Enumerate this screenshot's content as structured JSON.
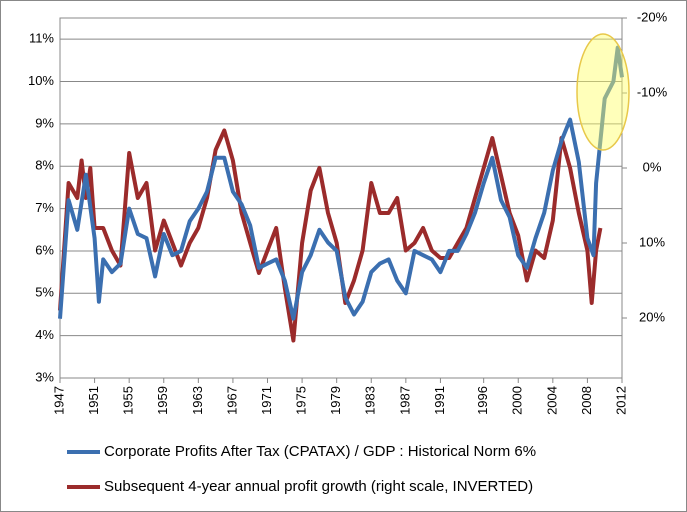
{
  "chart_data": {
    "type": "line",
    "xlim": [
      1947,
      2012
    ],
    "xticks": [
      1947,
      1951,
      1955,
      1959,
      1963,
      1967,
      1971,
      1975,
      1979,
      1983,
      1987,
      1991,
      1996,
      2000,
      2004,
      2008,
      2012
    ],
    "ylim": [
      3,
      11.5
    ],
    "yticks": [
      {
        "value": 3,
        "label": "3%"
      },
      {
        "value": 4,
        "label": "4%"
      },
      {
        "value": 5,
        "label": "5%"
      },
      {
        "value": 6,
        "label": "6%"
      },
      {
        "value": 7,
        "label": "7%"
      },
      {
        "value": 8,
        "label": "8%"
      },
      {
        "value": 9,
        "label": "9%"
      },
      {
        "value": 10,
        "label": "10%"
      },
      {
        "value": 11,
        "label": "11%"
      }
    ],
    "y2lim": [
      28,
      -20
    ],
    "y2ticks": [
      {
        "value": -20,
        "label": "-20%"
      },
      {
        "value": -10,
        "label": "-10%"
      },
      {
        "value": 0,
        "label": "0%"
      },
      {
        "value": 10,
        "label": "10%"
      },
      {
        "value": 20,
        "label": "20%"
      }
    ],
    "grid": true,
    "legend": "bottom",
    "series": [
      {
        "name": "Corporate Profits After Tax (CPATAX) / GDP : Historical Norm 6%",
        "color": "#3b6fb0",
        "x": [
          1947,
          1948,
          1949,
          1950,
          1951,
          1951.5,
          1952,
          1953,
          1954,
          1955,
          1956,
          1957,
          1958,
          1959,
          1960,
          1961,
          1962,
          1963,
          1964,
          1965,
          1966,
          1967,
          1968,
          1969,
          1970,
          1971,
          1972,
          1973,
          1974,
          1975,
          1976,
          1977,
          1978,
          1979,
          1980,
          1981,
          1982,
          1983,
          1984,
          1985,
          1986,
          1987,
          1988,
          1989,
          1990,
          1991,
          1992,
          1993,
          1994,
          1995,
          1996,
          1997,
          1998,
          1999,
          2000,
          2001,
          2002,
          2003,
          2004,
          2005,
          2006,
          2007,
          2008,
          2008.7,
          2009,
          2010,
          2011,
          2011.5,
          2012
        ],
        "values": [
          4.4,
          7.2,
          6.5,
          7.8,
          6.3,
          4.8,
          5.8,
          5.5,
          5.7,
          7.0,
          6.4,
          6.3,
          5.4,
          6.4,
          5.9,
          6.0,
          6.7,
          7.0,
          7.4,
          8.2,
          8.2,
          7.4,
          7.1,
          6.6,
          5.6,
          5.7,
          5.8,
          5.3,
          4.4,
          5.5,
          5.9,
          6.5,
          6.2,
          6.0,
          4.9,
          4.5,
          4.8,
          5.5,
          5.7,
          5.8,
          5.3,
          5.0,
          6.0,
          5.9,
          5.8,
          5.5,
          6.0,
          6.0,
          6.4,
          6.9,
          7.6,
          8.2,
          7.2,
          6.8,
          5.9,
          5.6,
          6.3,
          6.9,
          7.9,
          8.6,
          9.1,
          8.1,
          6.3,
          5.9,
          7.6,
          9.6,
          10.0,
          10.8,
          10.1
        ]
      },
      {
        "name": "Subsequent 4-year annual profit growth (right scale, INVERTED)",
        "color": "#9b2b2b",
        "axis": "y2",
        "x": [
          1947,
          1948,
          1949,
          1949.5,
          1950,
          1950.5,
          1951,
          1952,
          1953,
          1954,
          1955,
          1956,
          1957,
          1958,
          1959,
          1960,
          1961,
          1962,
          1963,
          1964,
          1965,
          1966,
          1967,
          1968,
          1969,
          1970,
          1971,
          1972,
          1973,
          1974,
          1975,
          1976,
          1977,
          1978,
          1979,
          1980,
          1981,
          1982,
          1983,
          1984,
          1985,
          1986,
          1987,
          1988,
          1989,
          1990,
          1991,
          1992,
          1993,
          1994,
          1995,
          1996,
          1997,
          1998,
          1999,
          2000,
          2001,
          2002,
          2003,
          2004,
          2005,
          2006,
          2007,
          2008,
          2008.5,
          2009,
          2009.5
        ],
        "values": [
          19,
          2,
          4,
          -1,
          4,
          0,
          8,
          8,
          11,
          13,
          -2,
          4,
          2,
          11,
          7,
          10,
          13,
          10,
          8,
          4,
          -2.4,
          -5,
          -1,
          6,
          10,
          14,
          11,
          8,
          16,
          23,
          10,
          3,
          0,
          6,
          10,
          18,
          15,
          11,
          2,
          6,
          6,
          4,
          11,
          10,
          8,
          11,
          12,
          12,
          10,
          8,
          4,
          0,
          -4,
          1,
          6,
          9,
          15,
          11,
          12,
          7,
          -4,
          0,
          6,
          11,
          18,
          11,
          8
        ]
      }
    ]
  }
}
